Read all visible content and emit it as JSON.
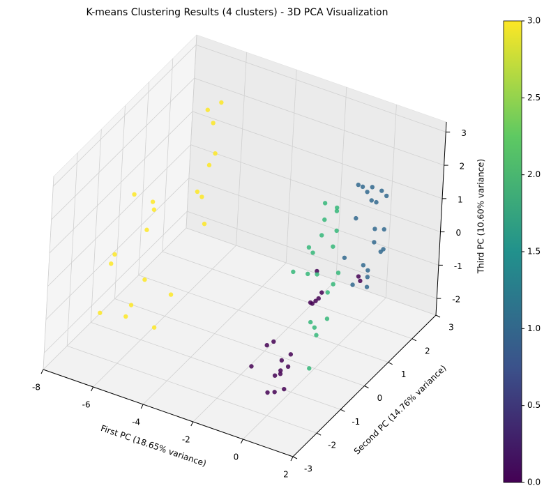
{
  "chart_data": {
    "type": "scatter3d",
    "title": "K-means Clustering Results (4 clusters) - 3D PCA Visualization",
    "xlabel": "First PC (18.65% variance)",
    "ylabel": "Second PC (14.76% variance)",
    "zlabel": "Third PC (10.60% variance)",
    "xlim": [
      -8,
      2
    ],
    "ylim": [
      -3,
      3
    ],
    "zlim": [
      -2.5,
      3.3
    ],
    "xticks": [
      -8,
      -6,
      -4,
      -2,
      0,
      2
    ],
    "yticks": [
      -3,
      -2,
      -1,
      0,
      1,
      2,
      3
    ],
    "zticks": [
      -2,
      -1,
      0,
      1,
      2,
      3
    ],
    "grid": true,
    "colormap": "viridis",
    "clim": [
      0,
      3
    ],
    "cticks": [
      {
        "value": 0,
        "label": "0.0"
      },
      {
        "value": 0.5,
        "label": "0.5"
      },
      {
        "value": 1,
        "label": "1.0"
      },
      {
        "value": 1.5,
        "label": "1.5"
      },
      {
        "value": 2,
        "label": "2.0"
      },
      {
        "value": 2.5,
        "label": "2.5"
      },
      {
        "value": 3,
        "label": "3.0"
      }
    ],
    "series": [
      {
        "value": 3,
        "color": "#fde725",
        "x": [
          -6.2,
          -5.8,
          -6.5,
          -6.0,
          -5.5,
          -6.8,
          -6.3,
          -5.9,
          -6.1,
          -5.7,
          -6.4,
          -6.0,
          -5.6,
          -6.6,
          -6.2,
          -5.8,
          -6.0,
          -6.3,
          -5.9,
          -6.1
        ],
        "y": [
          -1.5,
          -1.2,
          -1.8,
          -0.8,
          -1.0,
          -1.6,
          -1.3,
          1.5,
          1.8,
          1.2,
          1.6,
          2.0,
          1.4,
          -2.2,
          -0.5,
          0.0,
          -1.0,
          1.7,
          1.3,
          -1.4
        ],
        "z": [
          -1.5,
          -0.5,
          0.5,
          1.5,
          -2.0,
          0.0,
          2.0,
          1.0,
          2.0,
          -0.5,
          0.0,
          2.5,
          1.5,
          -1.0,
          1.0,
          -1.8,
          0.8,
          -0.2,
          2.8,
          -1.2
        ]
      },
      {
        "value": 0,
        "color": "#440154",
        "x": [
          0,
          -0.2,
          0.1,
          -0.5,
          -0.3,
          0.2,
          0,
          -0.8,
          -0.1,
          0.3,
          -0.4,
          0.1,
          -0.2,
          0.9,
          1.0,
          0,
          -0.6,
          -0.1,
          0.2,
          -0.3
        ],
        "y": [
          -1.5,
          -1.8,
          -1.2,
          -1.6,
          -1.4,
          -1.7,
          -1.3,
          -1.9,
          0.0,
          -0.2,
          0.2,
          -0.1,
          0.1,
          0.8,
          0.6,
          -1.5,
          -1.2,
          -1.6,
          -1.4,
          0.0
        ],
        "z": [
          -1.5,
          -2.0,
          -1.2,
          -0.8,
          -1.8,
          -1.0,
          -2.2,
          -1.3,
          -0.5,
          0.0,
          -0.8,
          -0.3,
          0.3,
          -0.2,
          0.1,
          -1.6,
          -1.0,
          -2.1,
          -1.4,
          -0.6
        ]
      },
      {
        "value": 2,
        "color": "#35b779",
        "x": [
          0,
          0.2,
          -0.2,
          0.1,
          -0.1,
          0.3,
          0,
          -0.3,
          0.2,
          0,
          0.1,
          -0.2,
          0.4,
          -0.4,
          0,
          0.1,
          -0.1,
          0.2,
          0.5,
          -0.6
        ],
        "y": [
          0,
          0.3,
          -0.3,
          0.5,
          0.2,
          0.1,
          0.4,
          -0.2,
          0.6,
          0.0,
          -0.4,
          0.3,
          0.2,
          0.1,
          -0.1,
          0.5,
          0.0,
          0.4,
          -0.8,
          -0.5
        ],
        "z": [
          1.5,
          1.0,
          0.5,
          2.0,
          1.8,
          -1.0,
          -0.5,
          1.2,
          0.0,
          -1.5,
          -0.8,
          2.2,
          1.6,
          0.8,
          -1.2,
          1.9,
          0.3,
          -0.2,
          -1.8,
          0.6
        ]
      },
      {
        "value": 1,
        "color": "#31688e",
        "x": [
          1,
          1.2,
          0.8,
          1.1,
          0.9,
          1.3,
          1,
          0.7,
          1.2,
          1,
          1.1,
          0.9,
          1.4,
          0.6,
          1,
          1.2,
          0.8,
          1.1,
          0.5,
          1
        ],
        "y": [
          1,
          1.2,
          0.8,
          1.1,
          0.9,
          1.3,
          1.0,
          0.7,
          1.4,
          1.0,
          1.1,
          0.9,
          1.2,
          0.8,
          1.0,
          1.3,
          0.6,
          1.1,
          0.5,
          1.0
        ],
        "z": [
          2.5,
          2.3,
          2.6,
          2.0,
          2.4,
          0.5,
          0.0,
          -0.3,
          1.0,
          -0.5,
          0.8,
          0.2,
          2.2,
          1.6,
          -0.2,
          0.4,
          2.8,
          1.2,
          0.6,
          2.1
        ]
      }
    ]
  }
}
